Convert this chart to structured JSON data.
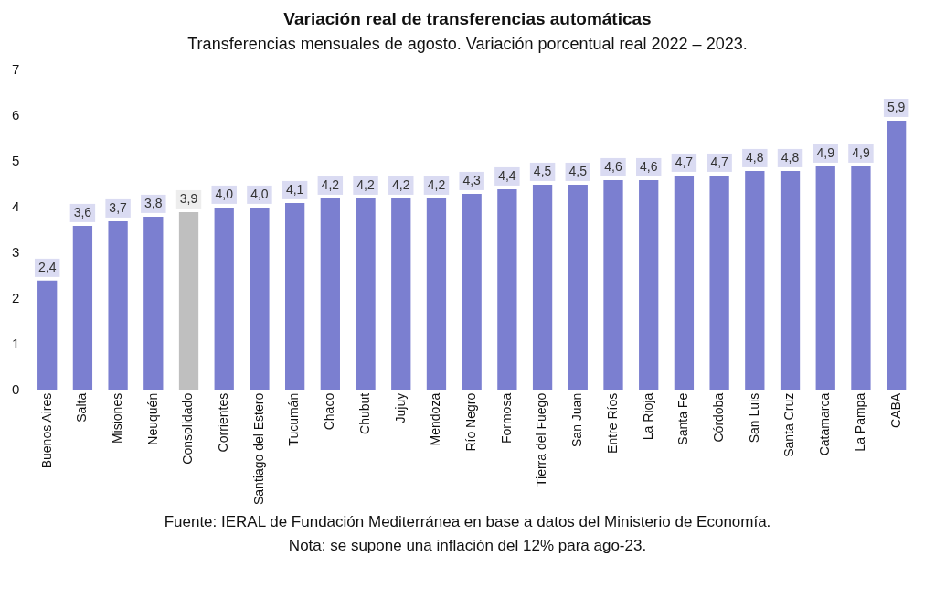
{
  "chart_data": {
    "type": "bar",
    "title": "Variación real de transferencias automáticas",
    "subtitle": "Transferencias mensuales de agosto. Variación porcentual real 2022 – 2023.",
    "categories": [
      "Buenos Aires",
      "Salta",
      "Misiones",
      "Neuquén",
      "Consolidado",
      "Corrientes",
      "Santiago del Estero",
      "Tucumán",
      "Chaco",
      "Chubut",
      "Jujuy",
      "Mendoza",
      "Río Negro",
      "Formosa",
      "Tierra del Fuego",
      "San Juan",
      "Entre Ríos",
      "La Rioja",
      "Santa Fe",
      "Córdoba",
      "San Luis",
      "Santa Cruz",
      "Catamarca",
      "La Pampa",
      "CABA"
    ],
    "values": [
      2.4,
      3.6,
      3.7,
      3.8,
      3.9,
      4.0,
      4.0,
      4.1,
      4.2,
      4.2,
      4.2,
      4.2,
      4.3,
      4.4,
      4.5,
      4.5,
      4.6,
      4.6,
      4.7,
      4.7,
      4.8,
      4.8,
      4.9,
      4.9,
      5.9
    ],
    "value_labels": [
      "2,4",
      "3,6",
      "3,7",
      "3,8",
      "3,9",
      "4,0",
      "4,0",
      "4,1",
      "4,2",
      "4,2",
      "4,2",
      "4,2",
      "4,3",
      "4,4",
      "4,5",
      "4,5",
      "4,6",
      "4,6",
      "4,7",
      "4,7",
      "4,8",
      "4,8",
      "4,9",
      "4,9",
      "5,9"
    ],
    "colors": [
      "#7b7fd0",
      "#7b7fd0",
      "#7b7fd0",
      "#7b7fd0",
      "#bfbfbf",
      "#7b7fd0",
      "#7b7fd0",
      "#7b7fd0",
      "#7b7fd0",
      "#7b7fd0",
      "#7b7fd0",
      "#7b7fd0",
      "#7b7fd0",
      "#7b7fd0",
      "#7b7fd0",
      "#7b7fd0",
      "#7b7fd0",
      "#7b7fd0",
      "#7b7fd0",
      "#7b7fd0",
      "#7b7fd0",
      "#7b7fd0",
      "#7b7fd0",
      "#7b7fd0",
      "#7b7fd0"
    ],
    "ylim": [
      0,
      7
    ],
    "yticks": [
      0,
      1,
      2,
      3,
      4,
      5,
      6,
      7
    ],
    "grid": false,
    "legend": false,
    "annotations": [
      "Fuente: IERAL de Fundación Mediterránea en base a datos del Ministerio de Economía.",
      "Nota: se supone una inflación del 12% para ago-23."
    ]
  }
}
